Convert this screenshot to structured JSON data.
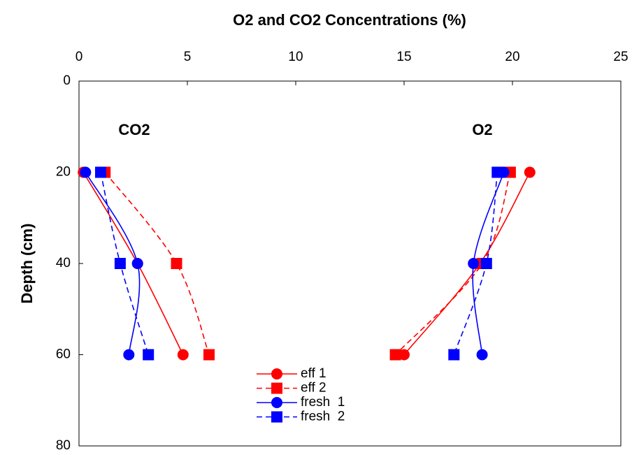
{
  "chart_data": {
    "type": "line",
    "title": "O2 and CO2 Concentrations (%)",
    "y_label": "Depth (cm)",
    "annotations": [
      "CO2",
      "O2"
    ],
    "xlim": [
      0,
      25
    ],
    "xticks": [
      0,
      5,
      10,
      15,
      20,
      25
    ],
    "ylim": [
      0,
      80
    ],
    "yticks": [
      0,
      20,
      40,
      60,
      80
    ],
    "y_inverted": true,
    "x_axis_position": "top",
    "legend": "bottom-center",
    "smooth": true,
    "series": [
      {
        "name": "eff 1",
        "color": "#ff0000",
        "marker": "circle",
        "dashed": false,
        "depth": [
          20,
          40,
          60
        ],
        "co2": [
          0.2,
          2.7,
          4.8
        ],
        "o2": [
          20.8,
          18.5,
          15.0
        ]
      },
      {
        "name": "eff 2",
        "color": "#ff0000",
        "marker": "square",
        "dashed": true,
        "depth": [
          20,
          40,
          60
        ],
        "co2": [
          1.2,
          4.5,
          6.0
        ],
        "o2": [
          19.9,
          18.6,
          14.6
        ]
      },
      {
        "name": "fresh  1",
        "color": "#0000ff",
        "marker": "circle",
        "dashed": false,
        "depth": [
          20,
          40,
          60
        ],
        "co2": [
          0.3,
          2.7,
          2.3
        ],
        "o2": [
          19.6,
          18.2,
          18.6
        ]
      },
      {
        "name": "fresh  2",
        "color": "#0000ff",
        "marker": "square",
        "dashed": true,
        "depth": [
          20,
          40,
          60
        ],
        "co2": [
          1.0,
          1.9,
          3.2
        ],
        "o2": [
          19.3,
          18.8,
          17.3
        ]
      }
    ]
  }
}
